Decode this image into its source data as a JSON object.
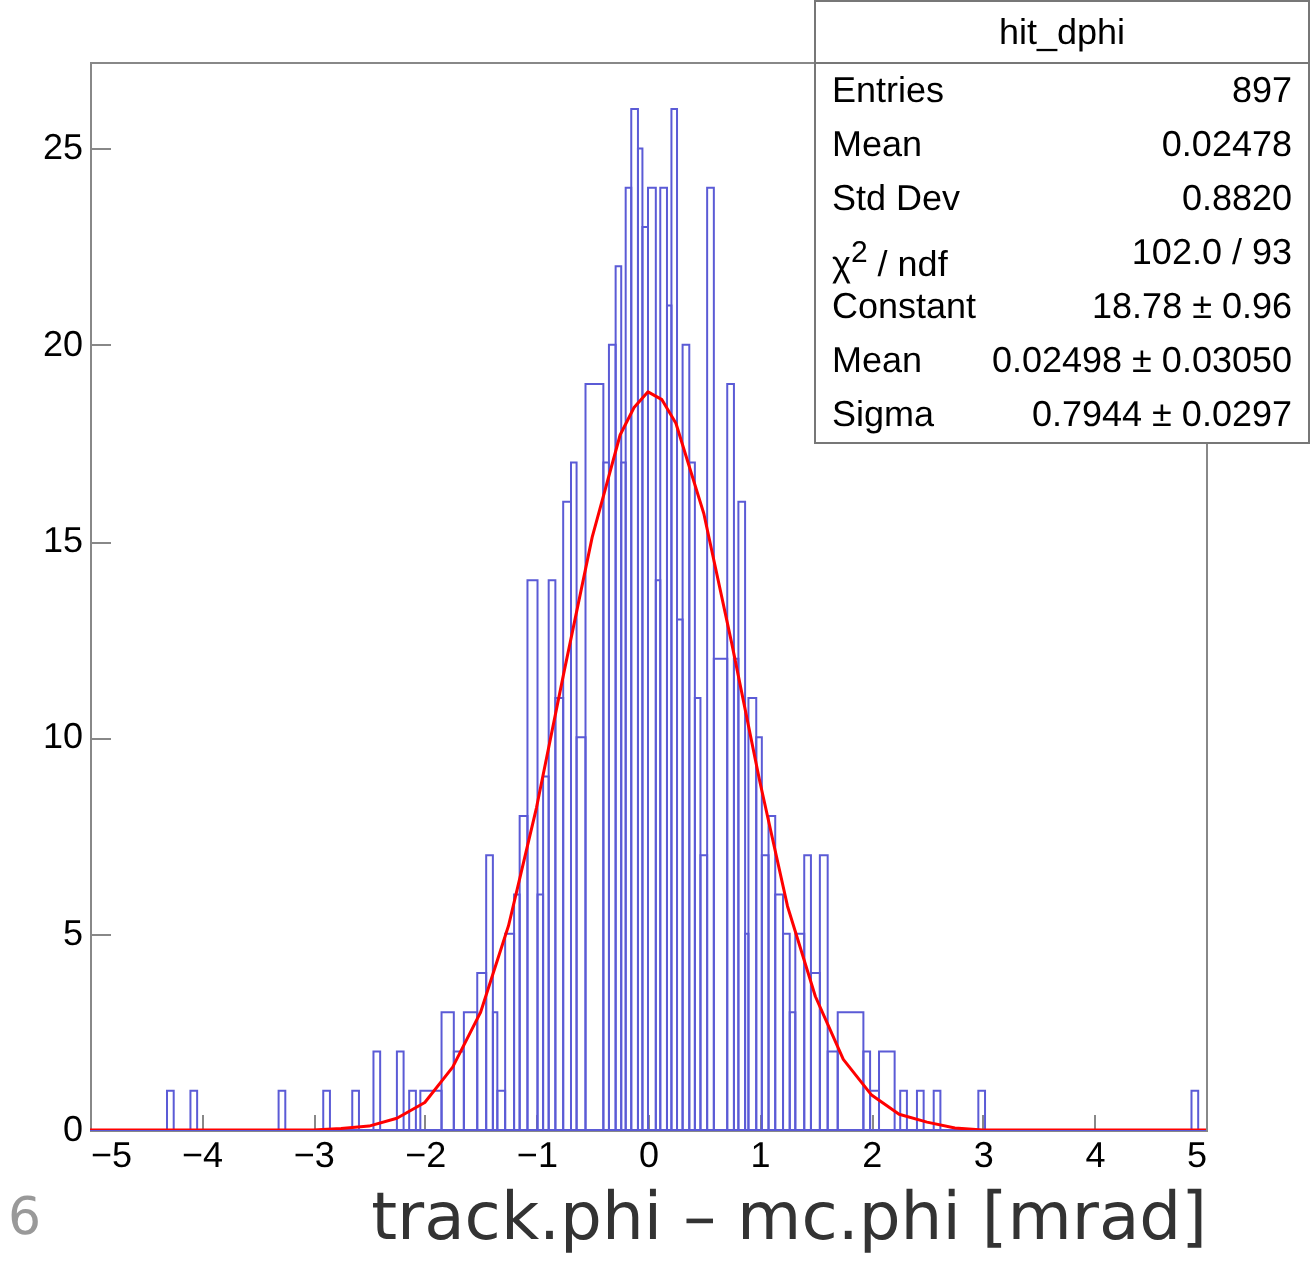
{
  "chart_data": {
    "type": "histogram",
    "title": "hit_dphi",
    "xlabel": "track.phi – mc.phi [mrad]",
    "bins": [
      -5,
      -4.31,
      -4.25,
      -4.1,
      -4.04,
      -3.31,
      -3.25,
      -2.91,
      -2.85,
      -2.65,
      -2.59,
      -2.46,
      -2.4,
      -2.25,
      -2.19,
      -2.14,
      -2.08,
      -2.04,
      -1.85,
      -1.74,
      -1.65,
      -1.53,
      -1.45,
      -1.39,
      -1.35,
      -1.28,
      -1.2,
      -1.15,
      -1.08,
      -0.99,
      -0.94,
      -0.89,
      -0.83,
      -0.76,
      -0.69,
      -0.64,
      -0.56,
      -0.4,
      -0.35,
      -0.29,
      -0.24,
      -0.2,
      -0.15,
      -0.09,
      -0.05,
      0.0,
      0.07,
      0.11,
      0.17,
      0.21,
      0.26,
      0.31,
      0.37,
      0.42,
      0.47,
      0.53,
      0.59,
      0.71,
      0.77,
      0.81,
      0.87,
      0.9,
      0.97,
      1.02,
      1.08,
      1.14,
      1.21,
      1.27,
      1.32,
      1.4,
      1.46,
      1.54,
      1.61,
      1.7,
      1.93,
      1.99,
      2.07,
      2.21,
      2.26,
      2.32,
      2.41,
      2.47,
      2.56,
      2.62,
      2.96,
      3.02,
      4.87,
      4.93,
      5
    ],
    "values": [
      0,
      1,
      0,
      1,
      0,
      1,
      0,
      1,
      0,
      1,
      0,
      2,
      0,
      2,
      0,
      1,
      0,
      1,
      3,
      2,
      3,
      4,
      7,
      3,
      1,
      5,
      6,
      8,
      14,
      6,
      9,
      14,
      11,
      16,
      17,
      10,
      19,
      17,
      20,
      22,
      17,
      24,
      26,
      25,
      23,
      24,
      14,
      24,
      21,
      26,
      13,
      20,
      17,
      11,
      7,
      24,
      12,
      19,
      12,
      16,
      5,
      11,
      10,
      7,
      8,
      6,
      5,
      3,
      5,
      7,
      4,
      7,
      2,
      3,
      2,
      1,
      2,
      0,
      1,
      0,
      1,
      0,
      1,
      0,
      1,
      0,
      1,
      0
    ],
    "color": "#5b5bd6",
    "series": [
      {
        "type": "line",
        "color": "#ff0000",
        "x": [
          -5,
          -3.5,
          -3,
          -2.75,
          -2.5,
          -2.25,
          -2,
          -1.75,
          -1.5,
          -1.25,
          -1,
          -0.75,
          -0.5,
          -0.25,
          -0.125,
          0,
          0.125,
          0.25,
          0.5,
          0.75,
          1,
          1.25,
          1.5,
          1.75,
          2,
          2.25,
          2.5,
          2.75,
          3,
          3.5,
          5
        ],
        "values": [
          0,
          0,
          0,
          0.04,
          0.1,
          0.3,
          0.7,
          1.6,
          3.0,
          5.2,
          8.2,
          11.7,
          15.1,
          17.7,
          18.4,
          18.8,
          18.6,
          18.0,
          15.7,
          12.4,
          8.9,
          5.7,
          3.4,
          1.8,
          0.9,
          0.4,
          0.2,
          0.05,
          0,
          0,
          0
        ]
      }
    ],
    "xlim": [
      -5,
      5
    ],
    "xticks": [
      -5,
      -4,
      -3,
      -2,
      -1,
      0,
      1,
      2,
      3,
      4,
      5
    ],
    "ylim": [
      0,
      27.2
    ],
    "yticks": [
      0,
      5,
      10,
      15,
      20,
      25
    ],
    "grid": false,
    "annotations": [
      "Entries",
      "897",
      "Mean",
      "0.02478",
      "Std Dev",
      "0.8820",
      "χ$^{2}$ / ndf",
      "102.0 / 93",
      "Constant",
      "18.78 ± 0.96",
      "Mean",
      "0.02498 ± 0.03050",
      "Sigma",
      "0.7944 ± 0.0297",
      "6"
    ]
  }
}
